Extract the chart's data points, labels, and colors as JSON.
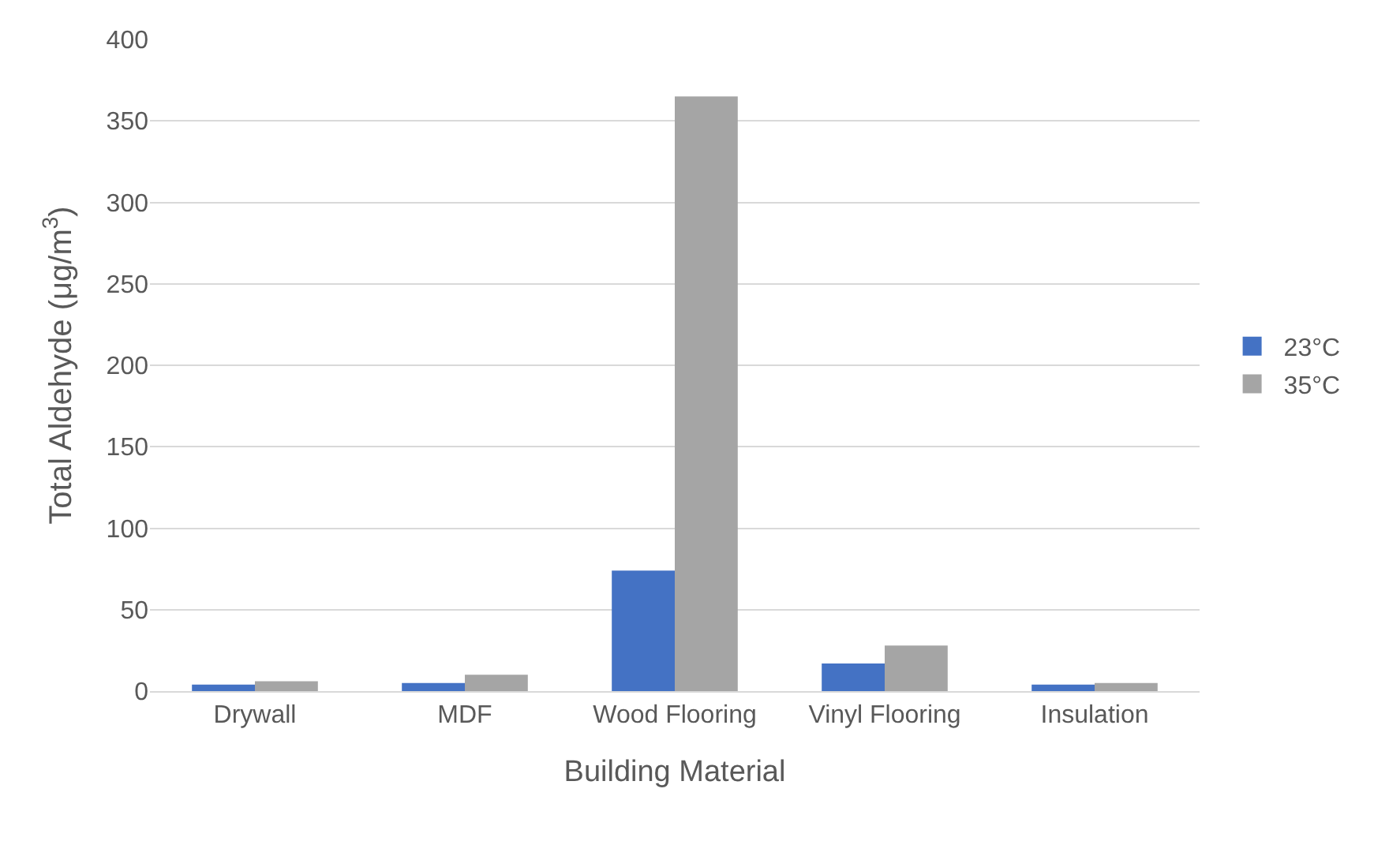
{
  "chart_data": {
    "type": "bar",
    "xlabel": "Building Material",
    "ylabel": "Total Aldehyde (μg/m$^{3}$)",
    "categories": [
      "Drywall",
      "MDF",
      "Wood Flooring",
      "Vinyl Flooring",
      "Insulation"
    ],
    "series": [
      {
        "name": "23°C",
        "color": "#4472c4",
        "values": [
          4,
          5,
          74,
          17,
          4
        ]
      },
      {
        "name": "35°C",
        "color": "#a5a5a5",
        "values": [
          6,
          10,
          365,
          28,
          5
        ]
      }
    ],
    "ylim": [
      0,
      400
    ],
    "yticks": [
      0,
      50,
      100,
      150,
      200,
      250,
      300,
      350,
      400
    ],
    "grid": "y",
    "legend": "right"
  }
}
